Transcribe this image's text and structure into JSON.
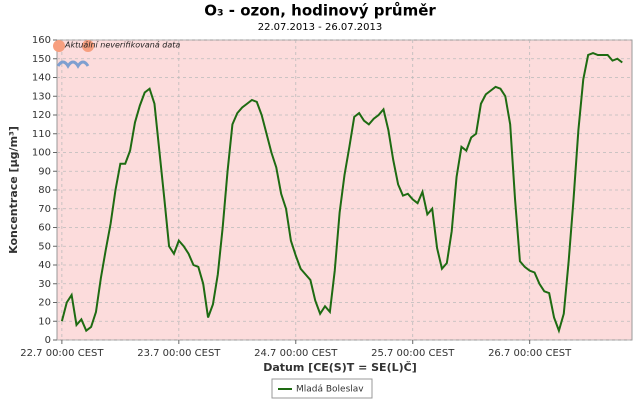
{
  "chart_data": {
    "type": "line",
    "title": "O₃ - ozon, hodinový průměr",
    "subtitle": "22.07.2013 - 26.07.2013",
    "y_label": "Koncentrace [µg/m³]",
    "x_label": "Datum [CE(S)T = SE(L)Č]",
    "annotation": "Aktuální neverifikovaná data",
    "x": [
      0,
      1,
      2,
      3,
      4,
      5,
      6,
      7,
      8,
      9,
      10,
      11,
      12,
      13,
      14,
      15,
      16,
      17,
      18,
      19,
      20,
      21,
      22,
      23,
      24,
      25,
      26,
      27,
      28,
      29,
      30,
      31,
      32,
      33,
      34,
      35,
      36,
      37,
      38,
      39,
      40,
      41,
      42,
      43,
      44,
      45,
      46,
      47,
      48,
      49,
      50,
      51,
      52,
      53,
      54,
      55,
      56,
      57,
      58,
      59,
      60,
      61,
      62,
      63,
      64,
      65,
      66,
      67,
      68,
      69,
      70,
      71,
      72,
      73,
      74,
      75,
      76,
      77,
      78,
      79,
      80,
      81,
      82,
      83,
      84,
      85,
      86,
      87,
      88,
      89,
      90,
      91,
      92,
      93,
      94,
      95,
      96,
      97,
      98,
      99,
      100,
      101,
      102,
      103,
      104,
      105,
      106,
      107,
      108,
      109,
      110,
      111,
      112,
      113,
      114,
      115
    ],
    "series": [
      {
        "name": "Mladá Boleslav",
        "color": "#1e6b12",
        "values": [
          10,
          20,
          24,
          8,
          11,
          5,
          7,
          15,
          33,
          48,
          62,
          80,
          94,
          94,
          101,
          116,
          125,
          132,
          134,
          126,
          101,
          76,
          50,
          46,
          53,
          50,
          46,
          40,
          39,
          30,
          12,
          19,
          35,
          60,
          90,
          115,
          121,
          124,
          126,
          128,
          127,
          120,
          110,
          100,
          92,
          78,
          70,
          53,
          45,
          38,
          35,
          32,
          21,
          14,
          18,
          15,
          37,
          68,
          88,
          103,
          119,
          121,
          117,
          115,
          118,
          120,
          123,
          112,
          96,
          83,
          77,
          78,
          75,
          73,
          79,
          67,
          70,
          49,
          38,
          41,
          58,
          87,
          103,
          101,
          108,
          110,
          126,
          131,
          133,
          135,
          134,
          130,
          115,
          75,
          42,
          39,
          37,
          36,
          30,
          26,
          25,
          12,
          5,
          14,
          42,
          75,
          112,
          139,
          152,
          153,
          152,
          152,
          152,
          149,
          150,
          148
        ]
      }
    ],
    "xlim": [
      -1,
      117
    ],
    "xticks": [
      {
        "value": 0,
        "label": "22.7 00:00 CEST"
      },
      {
        "value": 24,
        "label": "23.7 00:00 CEST"
      },
      {
        "value": 48,
        "label": "24.7 00:00 CEST"
      },
      {
        "value": 72,
        "label": "25.7 00:00 CEST"
      },
      {
        "value": 96,
        "label": "26.7 00:00 CEST"
      }
    ],
    "ylim": [
      0,
      160
    ],
    "yticks": [
      0,
      10,
      20,
      30,
      40,
      50,
      60,
      70,
      80,
      90,
      100,
      110,
      120,
      130,
      140,
      150,
      160
    ],
    "grid": true,
    "background": "#fcdcdc"
  }
}
